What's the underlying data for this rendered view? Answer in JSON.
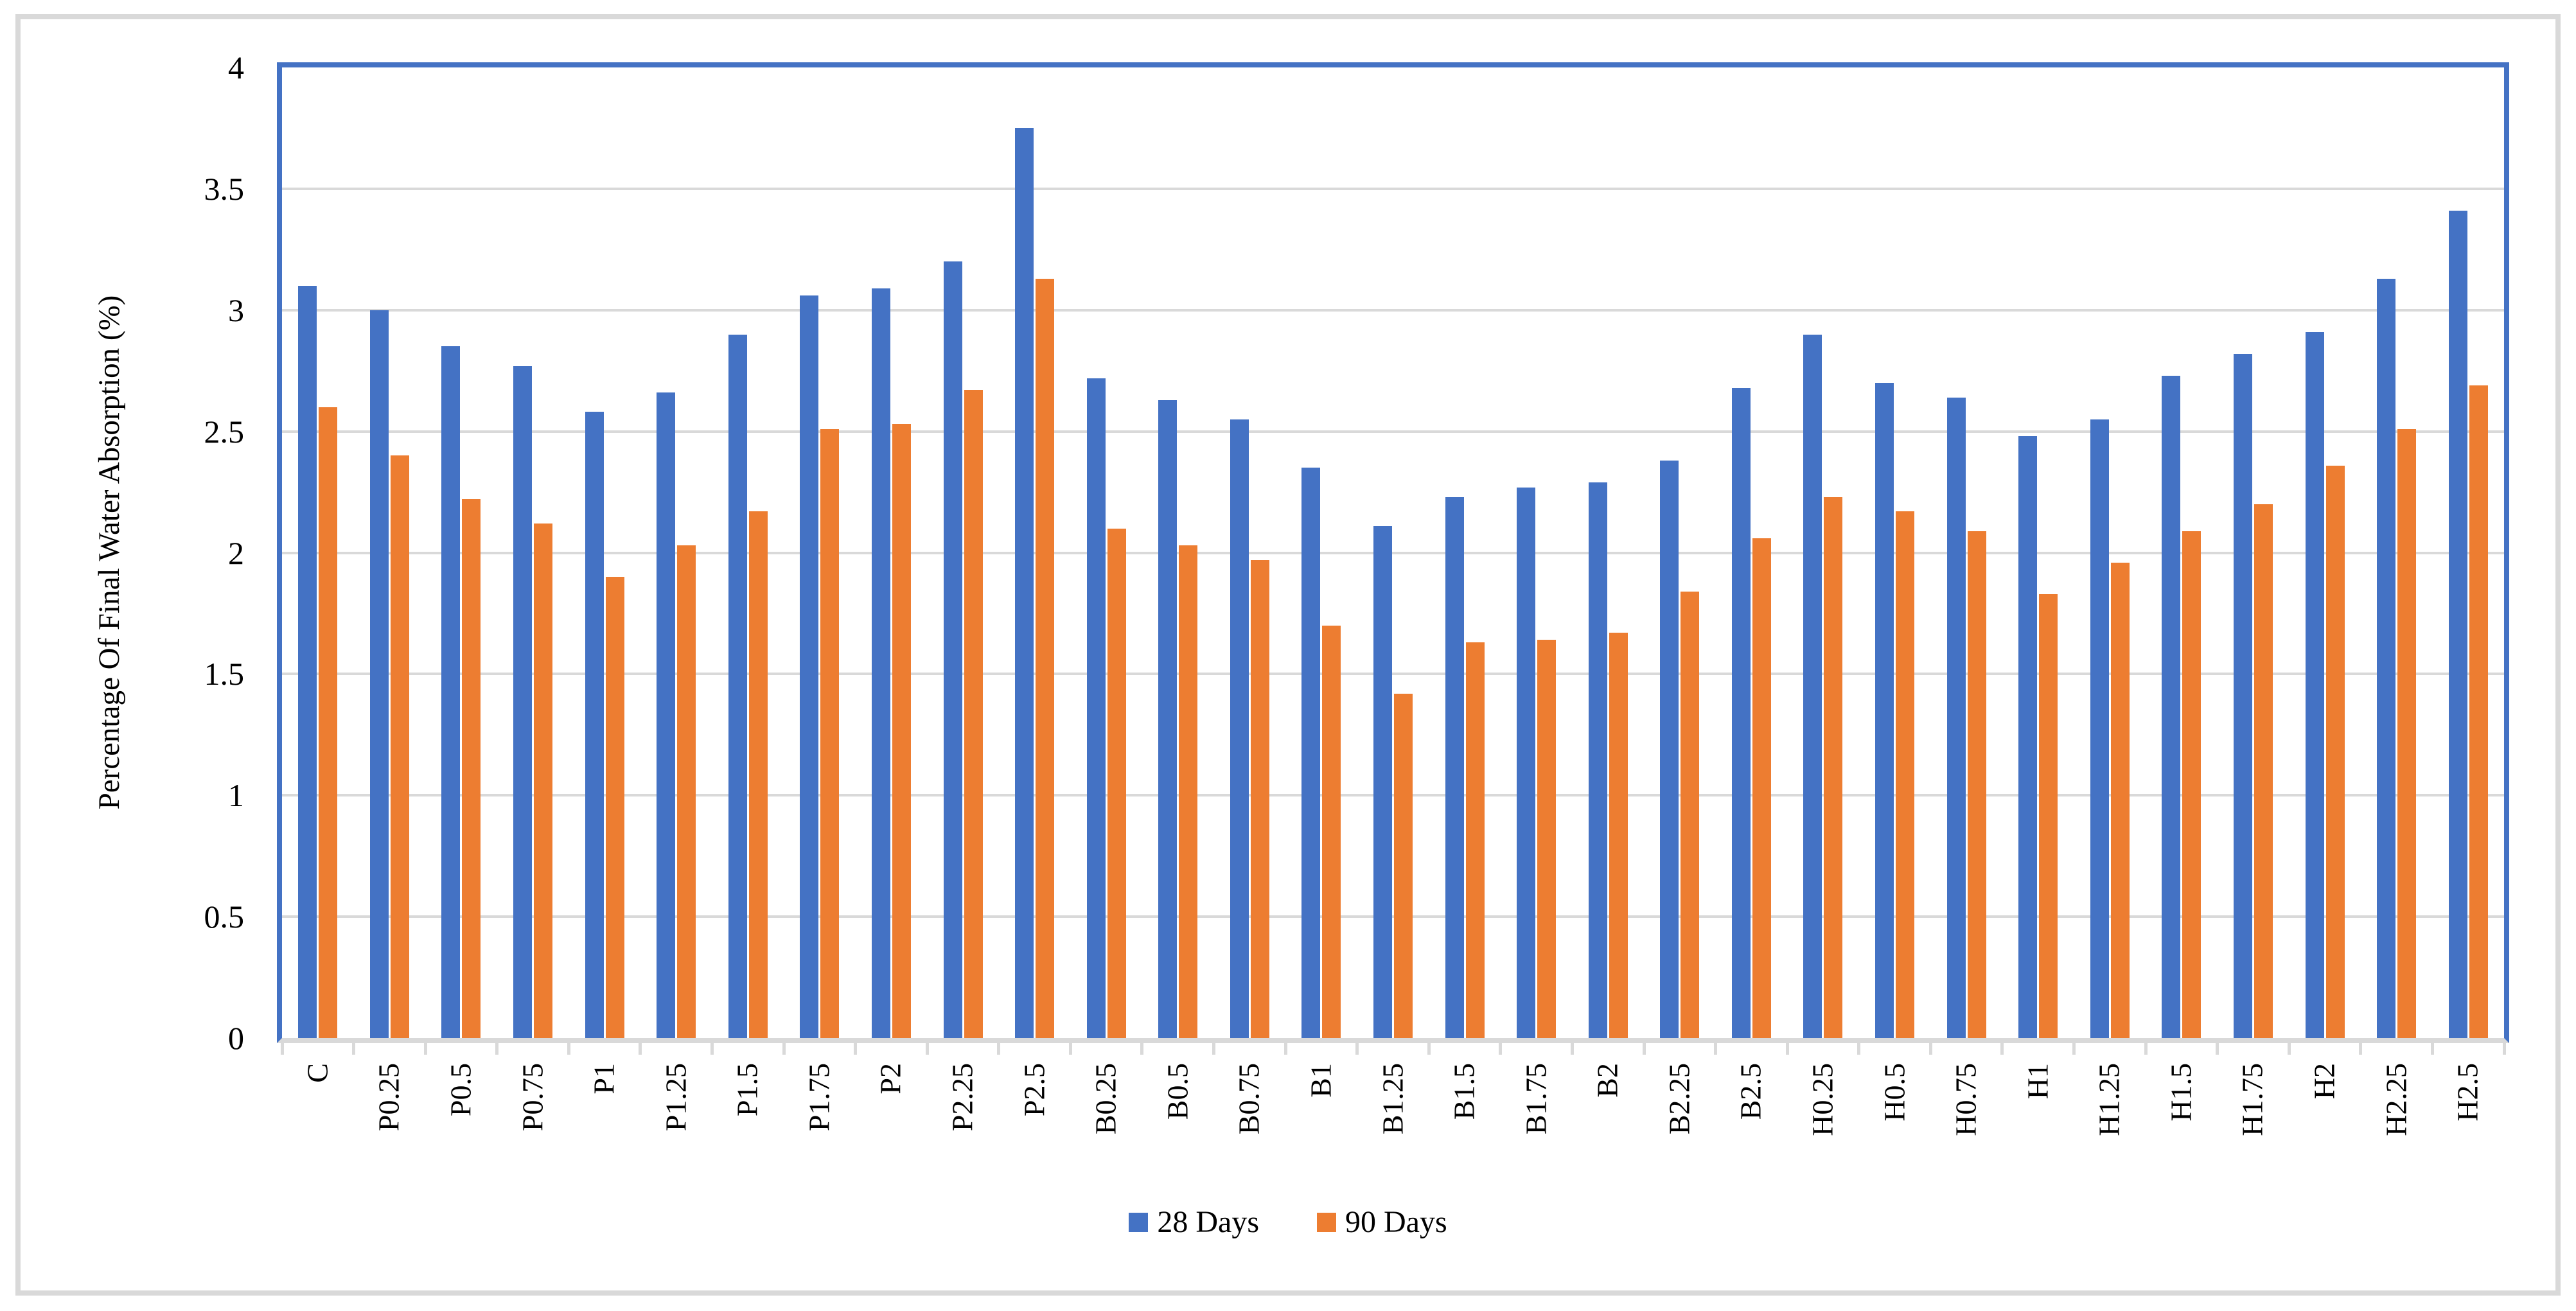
{
  "chart_data": {
    "type": "bar",
    "title": "",
    "xlabel": "",
    "ylabel": "Percentage Of Final Water Absorption (%)",
    "ylim": [
      0,
      4
    ],
    "ytick_step": 0.5,
    "ytick_labels": [
      "0",
      "0.5",
      "1",
      "1.5",
      "2",
      "2.5",
      "3",
      "3.5",
      "4"
    ],
    "grid": true,
    "legend_position": "bottom-center",
    "categories": [
      "C",
      "P0.25",
      "P0.5",
      "P0.75",
      "P1",
      "P1.25",
      "P1.5",
      "P1.75",
      "P2",
      "P2.25",
      "P2.5",
      "B0.25",
      "B0.5",
      "B0.75",
      "B1",
      "B1.25",
      "B1.5",
      "B1.75",
      "B2",
      "B2.25",
      "B2.5",
      "H0.25",
      "H0.5",
      "H0.75",
      "H1",
      "H1.25",
      "H1.5",
      "H1.75",
      "H2",
      "H2.25",
      "H2.5"
    ],
    "series": [
      {
        "name": "28 Days",
        "color": "#4472C4",
        "values": [
          3.1,
          3.0,
          2.85,
          2.77,
          2.58,
          2.66,
          2.9,
          3.06,
          3.09,
          3.2,
          3.75,
          2.72,
          2.63,
          2.55,
          2.35,
          2.11,
          2.23,
          2.27,
          2.29,
          2.38,
          2.68,
          2.9,
          2.7,
          2.64,
          2.48,
          2.55,
          2.73,
          2.82,
          2.91,
          3.13,
          3.41
        ]
      },
      {
        "name": "90 Days",
        "color": "#ED7D31",
        "values": [
          2.6,
          2.4,
          2.22,
          2.12,
          1.9,
          2.03,
          2.17,
          2.51,
          2.53,
          2.67,
          3.13,
          2.1,
          2.03,
          1.97,
          1.7,
          1.42,
          1.63,
          1.64,
          1.67,
          1.84,
          2.06,
          2.23,
          2.17,
          2.09,
          1.83,
          1.96,
          2.09,
          2.2,
          2.36,
          2.51,
          2.69
        ]
      }
    ]
  },
  "colors": {
    "background": "#FFFFFF",
    "frame_border": "#D9D9D9",
    "plot_border": "#4472C4",
    "gridline": "#D9D9D9",
    "axis_line": "#D9D9D9",
    "text": "#000000"
  }
}
